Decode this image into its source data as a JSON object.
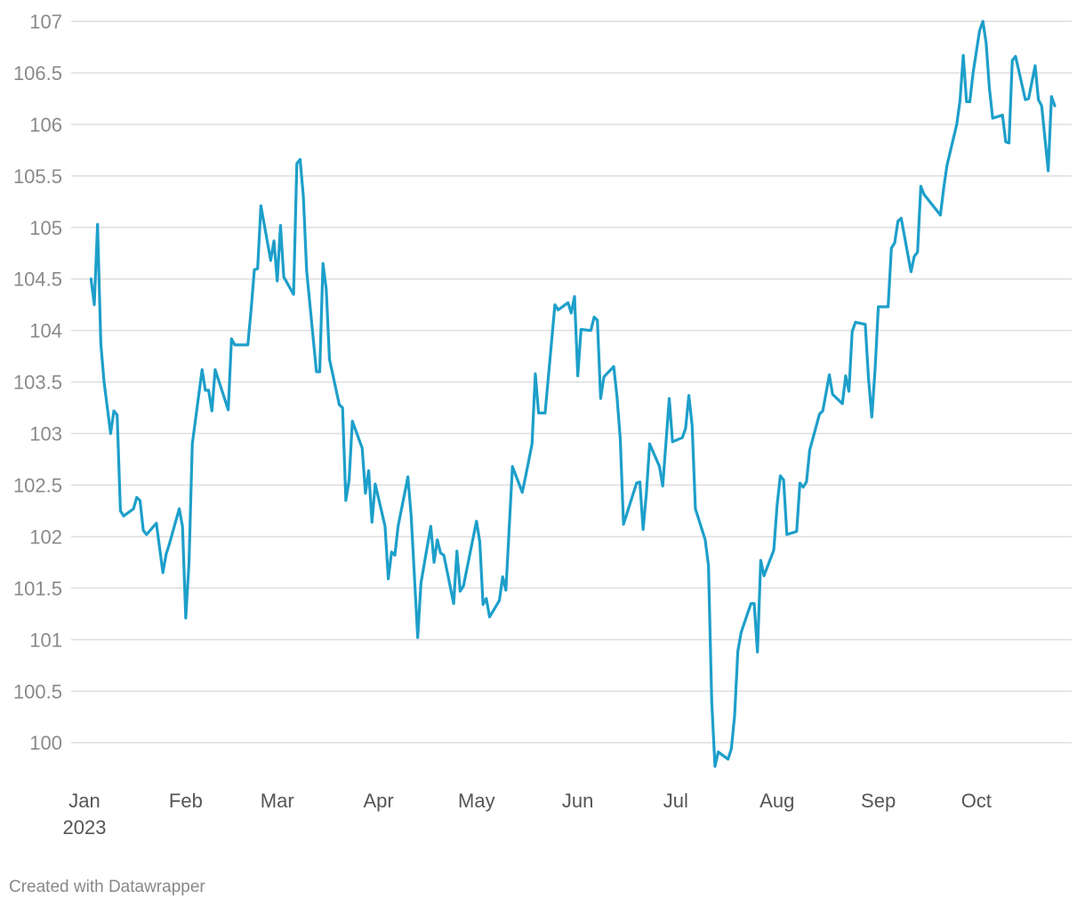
{
  "chart_data": {
    "type": "line",
    "footer": "Created with Datawrapper",
    "xlim": [
      0,
      300
    ],
    "xticks": [
      {
        "value": 0,
        "label": "Jan 2023"
      },
      {
        "value": 31,
        "label": "Feb"
      },
      {
        "value": 59,
        "label": "Mar"
      },
      {
        "value": 90,
        "label": "Apr"
      },
      {
        "value": 120,
        "label": "May"
      },
      {
        "value": 151,
        "label": "Jun"
      },
      {
        "value": 181,
        "label": "Jul"
      },
      {
        "value": 212,
        "label": "Aug"
      },
      {
        "value": 243,
        "label": "Sep"
      },
      {
        "value": 273,
        "label": "Oct"
      }
    ],
    "ylim": [
      99.7,
      107
    ],
    "yticks": [
      100,
      100.5,
      101,
      101.5,
      102,
      102.5,
      103,
      103.5,
      104,
      104.5,
      105,
      105.5,
      106,
      106.5,
      107
    ],
    "grid": true,
    "color": "#1d9fca",
    "x": [
      2,
      3,
      4,
      5,
      6,
      8,
      9,
      10,
      11,
      12,
      15,
      16,
      17,
      18,
      19,
      22,
      24,
      25,
      26,
      29,
      30,
      31,
      32,
      33,
      36,
      37,
      38,
      39,
      40,
      44,
      45,
      46,
      50,
      51,
      52,
      53,
      54,
      57,
      58,
      59,
      60,
      61,
      64,
      65,
      66,
      67,
      68,
      71,
      72,
      73,
      74,
      75,
      78,
      79,
      80,
      81,
      82,
      85,
      86,
      87,
      88,
      89,
      92,
      93,
      94,
      95,
      96,
      99,
      100,
      102,
      103,
      106,
      107,
      108,
      109,
      110,
      113,
      114,
      115,
      116,
      120,
      121,
      122,
      123,
      124,
      127,
      128,
      129,
      131,
      134,
      135,
      137,
      138,
      139,
      141,
      144,
      145,
      148,
      149,
      150,
      151,
      152,
      155,
      156,
      157,
      158,
      159,
      162,
      163,
      164,
      165,
      169,
      170,
      171,
      172,
      173,
      176,
      177,
      179,
      180,
      183,
      184,
      185,
      186,
      187,
      190,
      191,
      192,
      193,
      194,
      197,
      198,
      199,
      200,
      201,
      204,
      205,
      206,
      207,
      208,
      211,
      212,
      213,
      214,
      215,
      218,
      219,
      220,
      221,
      222,
      225,
      226,
      228,
      229,
      232,
      233,
      234,
      235,
      236,
      239,
      240,
      241,
      242,
      243,
      246,
      247,
      248,
      249,
      250,
      253,
      254,
      255,
      256,
      257,
      262,
      263,
      264,
      267,
      268,
      269,
      270,
      271,
      272,
      274,
      275,
      276,
      277,
      278,
      281,
      282,
      283,
      284,
      285,
      288,
      289,
      291,
      292,
      293,
      295,
      296,
      297
    ],
    "values": [
      104.5,
      104.25,
      105.03,
      103.87,
      103.5,
      103.0,
      103.22,
      103.18,
      102.25,
      102.2,
      102.27,
      102.38,
      102.35,
      102.06,
      102.02,
      102.13,
      101.65,
      101.83,
      101.93,
      102.27,
      102.1,
      101.21,
      101.75,
      102.9,
      103.62,
      103.42,
      103.42,
      103.22,
      103.62,
      103.23,
      103.92,
      103.86,
      103.86,
      104.2,
      104.59,
      104.6,
      105.21,
      104.68,
      104.87,
      104.48,
      105.02,
      104.52,
      104.35,
      105.62,
      105.66,
      105.3,
      104.58,
      103.6,
      103.6,
      104.65,
      104.4,
      103.72,
      103.28,
      103.25,
      102.35,
      102.55,
      103.12,
      102.86,
      102.42,
      102.64,
      102.14,
      102.51,
      102.1,
      101.59,
      101.85,
      101.82,
      102.1,
      102.58,
      102.2,
      101.02,
      101.55,
      102.1,
      101.75,
      101.97,
      101.84,
      101.82,
      101.35,
      101.86,
      101.47,
      101.52,
      102.15,
      101.95,
      101.34,
      101.4,
      101.22,
      101.38,
      101.61,
      101.48,
      102.68,
      102.43,
      102.58,
      102.9,
      103.58,
      103.2,
      103.2,
      104.25,
      104.2,
      104.27,
      104.17,
      104.33,
      103.56,
      104.01,
      104.0,
      104.13,
      104.1,
      103.34,
      103.55,
      103.65,
      103.36,
      102.95,
      102.12,
      102.52,
      102.53,
      102.07,
      102.42,
      102.9,
      102.68,
      102.49,
      103.34,
      102.92,
      102.96,
      103.05,
      103.37,
      103.08,
      102.27,
      101.97,
      101.72,
      100.4,
      99.77,
      99.91,
      99.84,
      99.94,
      100.26,
      100.89,
      101.07,
      101.35,
      101.35,
      100.88,
      101.77,
      101.62,
      101.87,
      102.3,
      102.59,
      102.55,
      102.02,
      102.05,
      102.52,
      102.48,
      102.53,
      102.84,
      103.19,
      103.22,
      103.57,
      103.38,
      103.29,
      103.56,
      103.41,
      103.99,
      104.08,
      104.06,
      103.53,
      103.16,
      103.62,
      104.23,
      104.23,
      104.8,
      104.85,
      105.06,
      105.09,
      104.57,
      104.72,
      104.76,
      105.4,
      105.32,
      105.12,
      105.38,
      105.6,
      106.0,
      106.23,
      106.67,
      106.22,
      106.22,
      106.5,
      106.91,
      107.0,
      106.79,
      106.35,
      106.06,
      106.09,
      105.83,
      105.82,
      106.62,
      106.66,
      106.24,
      106.25,
      106.57,
      106.24,
      106.18,
      105.55,
      106.27,
      106.18
    ]
  }
}
